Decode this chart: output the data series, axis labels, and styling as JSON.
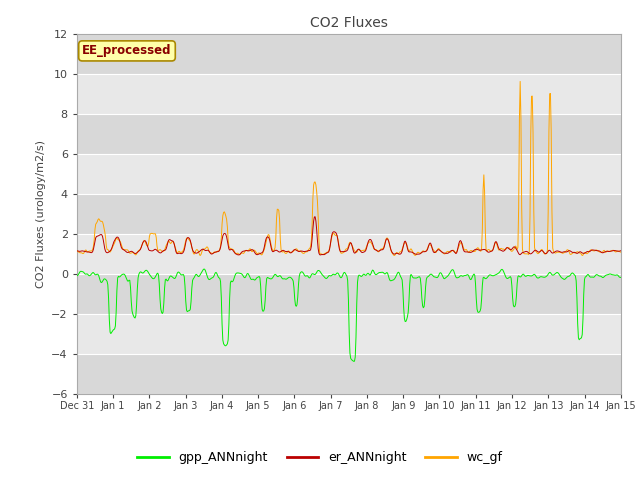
{
  "title": "CO2 Fluxes",
  "ylabel": "CO2 Fluxes (urology/m2/s)",
  "ylim": [
    -6,
    12
  ],
  "yticks": [
    -6,
    -4,
    -2,
    0,
    2,
    4,
    6,
    8,
    10,
    12
  ],
  "xlim_days": [
    0,
    15
  ],
  "xtick_labels": [
    "Dec 31",
    "Jan 1",
    "Jan 2",
    "Jan 3",
    "Jan 4",
    "Jan 5",
    "Jan 6",
    "Jan 7",
    "Jan 8",
    "Jan 9",
    "Jan 10",
    "Jan 11",
    "Jan 12",
    "Jan 13",
    "Jan 14",
    "Jan 15"
  ],
  "legend_labels": [
    "gpp_ANNnight",
    "er_ANNnight",
    "wc_gf"
  ],
  "line_colors": [
    "#00ee00",
    "#bb0000",
    "#ffa500"
  ],
  "annotation_text": "EE_processed",
  "annotation_color": "#880000",
  "annotation_bg": "#ffffaa",
  "annotation_edge": "#aa8800",
  "background_color": "#e8e8e8",
  "grid_color": "#ffffff",
  "title_color": "#444444",
  "label_color": "#444444",
  "tick_color": "#444444"
}
